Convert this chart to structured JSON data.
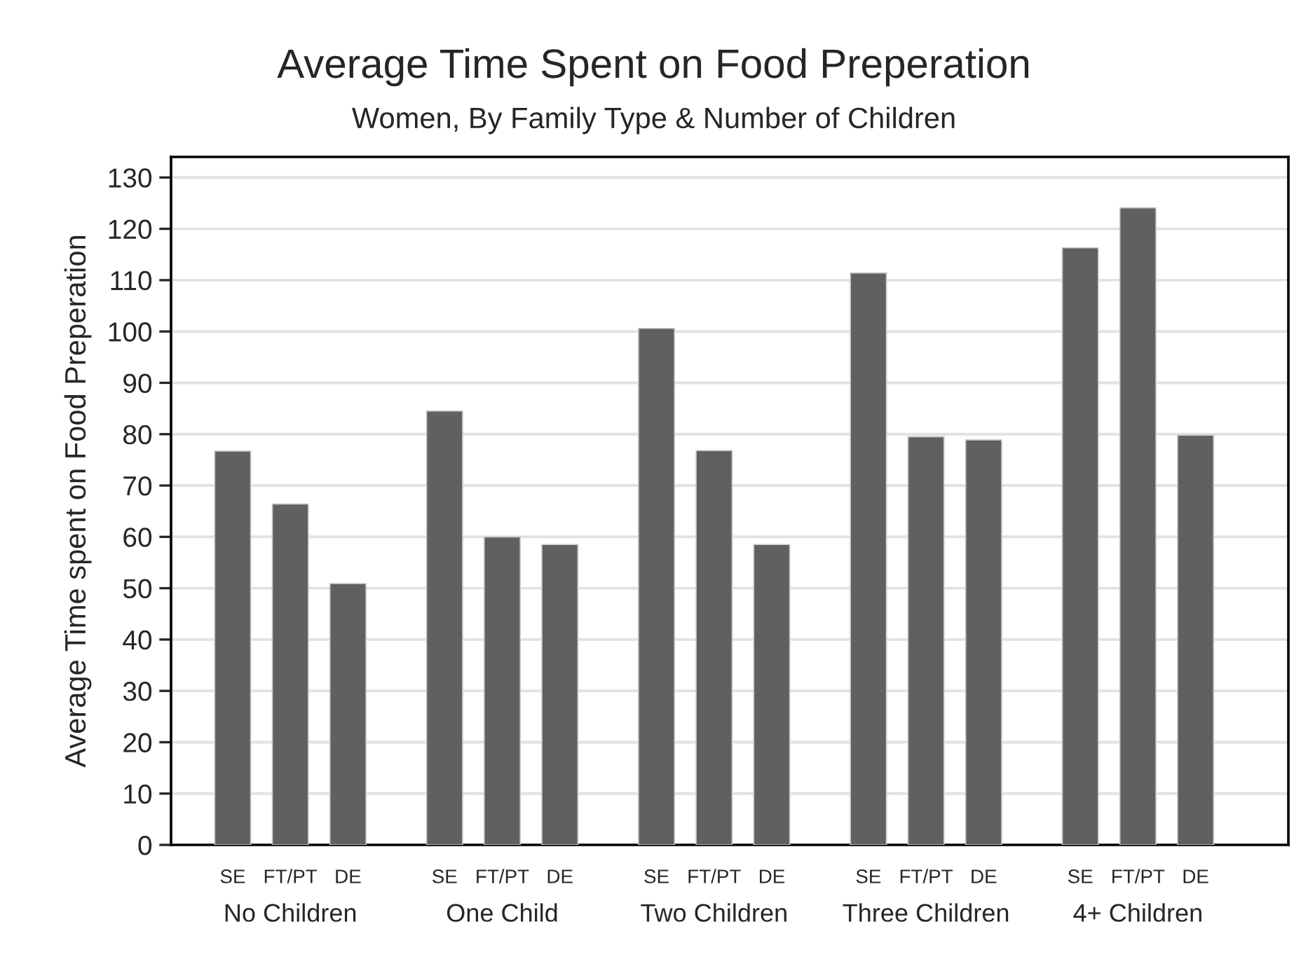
{
  "chart_data": {
    "type": "bar",
    "title": "Average Time Spent on Food Preperation",
    "subtitle": "Women, By Family Type & Number of Children",
    "ylabel": "Average Time spent on Food Preperation",
    "categories": [
      "No Children",
      "One Child",
      "Two Children",
      "Three Children",
      "4+ Children"
    ],
    "series": [
      {
        "name": "SE",
        "color": "#606060",
        "values": [
          76.7,
          84.5,
          100.6,
          111.4,
          116.3
        ]
      },
      {
        "name": "FT/PT",
        "color": "#606060",
        "values": [
          66.4,
          60.0,
          76.8,
          79.5,
          124.1
        ]
      },
      {
        "name": "DE",
        "color": "#606060",
        "values": [
          50.9,
          58.5,
          58.5,
          78.9,
          79.8
        ]
      }
    ],
    "ylim": [
      0,
      134
    ],
    "yticks": [
      0,
      10,
      20,
      30,
      40,
      50,
      60,
      70,
      80,
      90,
      100,
      110,
      120,
      130
    ],
    "grid": "y",
    "legend": false
  }
}
